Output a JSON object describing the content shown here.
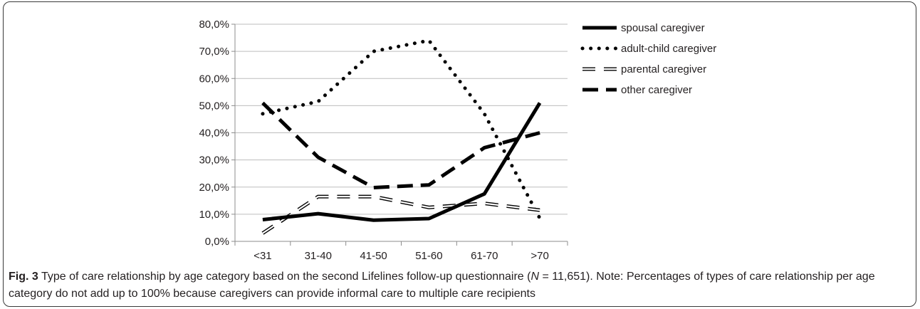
{
  "chart_data": {
    "type": "line",
    "title": "",
    "xlabel": "",
    "ylabel": "",
    "categories": [
      "<31",
      "31-40",
      "41-50",
      "51-60",
      "61-70",
      ">70"
    ],
    "ylim": [
      0,
      80
    ],
    "y_step": 10,
    "y_tick_labels": [
      "0,0%",
      "10,0%",
      "20,0%",
      "30,0%",
      "40,0%",
      "50,0%",
      "60,0%",
      "70,0%",
      "80,0%"
    ],
    "grid": true,
    "legend_placement": "right",
    "series": [
      {
        "name": "spousal caregiver",
        "style": "solid",
        "color": "#000000",
        "values": [
          8.0,
          10.2,
          7.8,
          8.4,
          17.5,
          51.0
        ]
      },
      {
        "name": "adult-child caregiver",
        "style": "dotted",
        "color": "#000000",
        "values": [
          47.0,
          51.5,
          70.0,
          74.0,
          47.0,
          8.5
        ]
      },
      {
        "name": "parental caregiver",
        "style": "hollow-dash",
        "color": "#000000",
        "values": [
          3.0,
          16.5,
          16.5,
          12.5,
          14.0,
          11.5
        ]
      },
      {
        "name": "other caregiver",
        "style": "dashed",
        "color": "#000000",
        "values": [
          51.0,
          31.0,
          19.8,
          20.8,
          34.5,
          40.0
        ]
      }
    ]
  },
  "caption": {
    "fig_label": "Fig. 3",
    "text_before_n": "Type of care relationship by age category based on the second Lifelines follow-up questionnaire (",
    "n_symbol": "N",
    "text_after_n": " = 11,651). Note: Percentages of types of care relationship per age category do not add up to 100% because caregivers can provide informal care to multiple care recipients"
  }
}
